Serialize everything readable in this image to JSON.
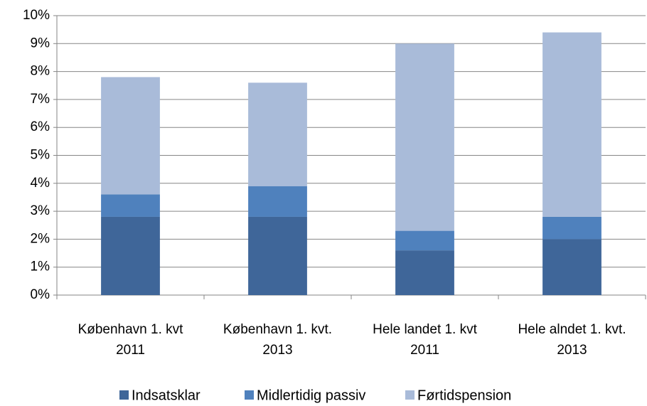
{
  "chart_data": {
    "type": "stacked_bar",
    "categories": [
      [
        "København  1. kvt",
        "2011"
      ],
      [
        "København  1. kvt.",
        "2013"
      ],
      [
        "Hele landet  1. kvt",
        "2011"
      ],
      [
        "Hele alndet  1. kvt.",
        "2013"
      ]
    ],
    "series": [
      {
        "name": "Indsatsklar",
        "color": "#3f6699",
        "values": [
          2.8,
          2.8,
          1.6,
          2.0
        ]
      },
      {
        "name": "Midlertidig passiv",
        "color": "#4f81bd",
        "values": [
          0.8,
          1.1,
          0.7,
          0.8
        ]
      },
      {
        "name": "Førtidspension",
        "color": "#a9bbd9",
        "values": [
          4.2,
          3.7,
          6.7,
          6.6
        ]
      }
    ],
    "ylim": [
      0,
      10
    ],
    "yticks": [
      {
        "value": 0,
        "label": "0%"
      },
      {
        "value": 1,
        "label": "1%"
      },
      {
        "value": 2,
        "label": "2%"
      },
      {
        "value": 3,
        "label": "3%"
      },
      {
        "value": 4,
        "label": "4%"
      },
      {
        "value": 5,
        "label": "5%"
      },
      {
        "value": 6,
        "label": "6%"
      },
      {
        "value": 7,
        "label": "7%"
      },
      {
        "value": 8,
        "label": "8%"
      },
      {
        "value": 9,
        "label": "9%"
      },
      {
        "value": 10,
        "label": "10%"
      }
    ],
    "grid": true,
    "legend": "bottom"
  }
}
